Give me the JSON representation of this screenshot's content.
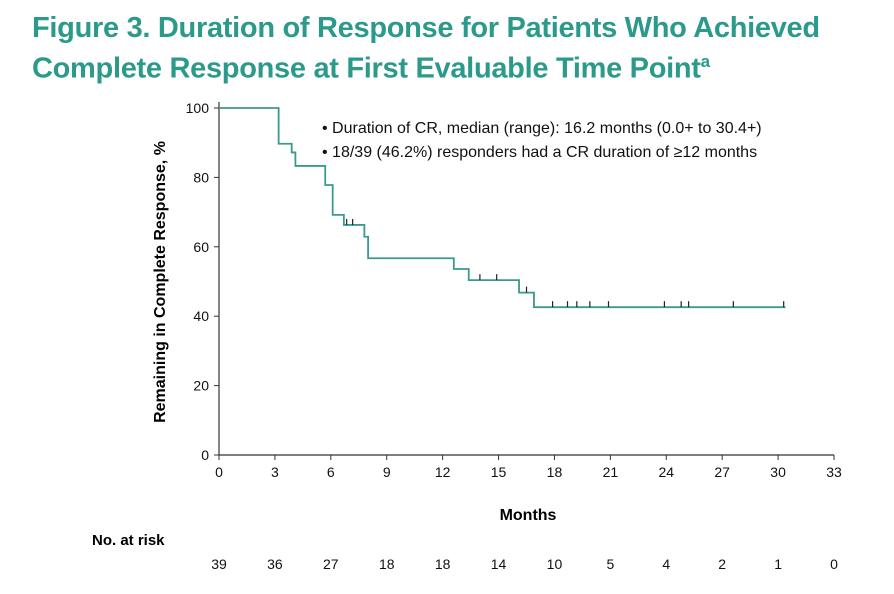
{
  "title": "Figure 3. Duration of Response for Patients Who Achieved Complete Response at First Evaluable Time Point",
  "title_line1": "Figure 3. Duration of Response for Patients Who Achieved",
  "title_line2": "Complete Response at First Evaluable Time Point",
  "title_footnote_mark": "a",
  "chart_data": {
    "type": "line",
    "subtype": "kaplan-meier step",
    "xlabel": "Months",
    "ylabel": "Remaining in Complete Response, %",
    "xlim": [
      0,
      33
    ],
    "ylim": [
      0,
      100
    ],
    "xticks": [
      0,
      3,
      6,
      9,
      12,
      15,
      18,
      21,
      24,
      27,
      30,
      33
    ],
    "yticks": [
      0,
      20,
      40,
      60,
      80,
      100
    ],
    "grid": false,
    "line_color": "#3a9a8f",
    "steps": [
      [
        0,
        100
      ],
      [
        3.2,
        89.7
      ],
      [
        3.9,
        87.2
      ],
      [
        4.1,
        83.3
      ],
      [
        5.7,
        77.8
      ],
      [
        6.1,
        69.2
      ],
      [
        6.7,
        66.3
      ],
      [
        7.8,
        62.9
      ],
      [
        8.0,
        56.7
      ],
      [
        12.6,
        53.6
      ],
      [
        13.4,
        50.4
      ],
      [
        16.1,
        46.8
      ],
      [
        16.9,
        42.6
      ],
      [
        30.4,
        42.6
      ]
    ],
    "censored": [
      6.85,
      7.17,
      14.0,
      14.9,
      16.5,
      17.9,
      18.7,
      19.2,
      19.9,
      20.9,
      23.9,
      24.8,
      25.2,
      27.6,
      30.3
    ],
    "annotations": [
      "• Duration of CR, median (range): 16.2 months (0.0+ to 30.4+)",
      "• 18/39 (46.2%) responders had a CR duration of ≥12 months"
    ],
    "risk_table": {
      "label": "No. at risk",
      "values": [
        39,
        36,
        27,
        18,
        18,
        14,
        10,
        5,
        4,
        2,
        1,
        0
      ]
    }
  }
}
